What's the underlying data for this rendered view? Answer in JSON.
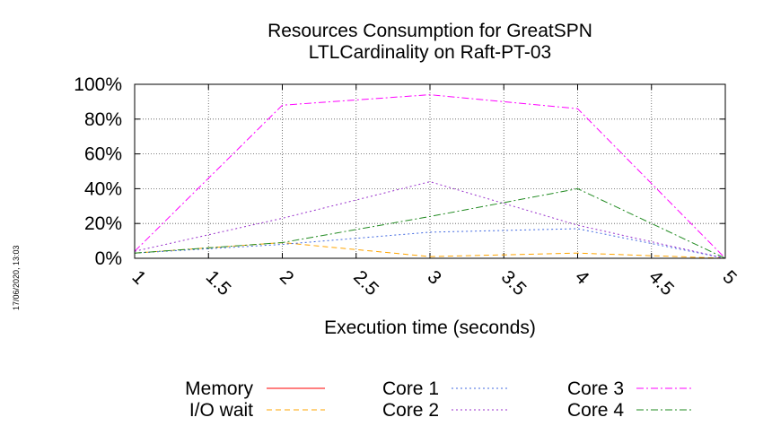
{
  "chart_data": {
    "type": "line",
    "title": "Resources Consumption for GreatSPN",
    "subtitle": "LTLCardinality on Raft-PT-03",
    "xlabel": "Execution time (seconds)",
    "ylabel": "",
    "xlim": [
      1,
      5
    ],
    "ylim": [
      0,
      100
    ],
    "x_ticks": [
      "1",
      "1.5",
      "2",
      "2.5",
      "3",
      "3.5",
      "4",
      "4.5",
      "5"
    ],
    "y_ticks": [
      "0%",
      "20%",
      "40%",
      "60%",
      "80%",
      "100%"
    ],
    "grid": true,
    "legend_position": "bottom",
    "x": [
      1,
      2,
      3,
      4,
      5
    ],
    "series": [
      {
        "name": "Memory",
        "color": "#ff0000",
        "dash": "solid",
        "values": [
          0,
          0,
          0,
          0,
          0
        ]
      },
      {
        "name": "I/O wait",
        "color": "#ffa500",
        "dash": "dashed",
        "values": [
          3,
          9,
          1,
          3,
          0
        ]
      },
      {
        "name": "Core 1",
        "color": "#4169e1",
        "dash": "dotted",
        "values": [
          3,
          8,
          15,
          17,
          0
        ]
      },
      {
        "name": "Core 2",
        "color": "#9932cc",
        "dash": "dotted",
        "values": [
          4,
          23,
          44,
          19,
          0
        ]
      },
      {
        "name": "Core 3",
        "color": "#ff00ff",
        "dash": "dashdot",
        "values": [
          4,
          88,
          94,
          86,
          0
        ]
      },
      {
        "name": "Core 4",
        "color": "#228b22",
        "dash": "dashdot",
        "values": [
          3,
          9,
          24,
          40,
          0
        ]
      }
    ]
  },
  "timestamp": "17/06/2020, 13:03"
}
